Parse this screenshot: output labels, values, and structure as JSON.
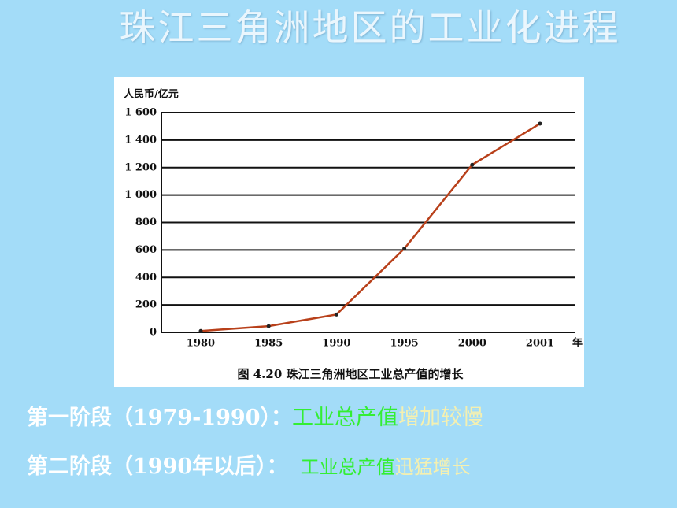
{
  "slide": {
    "title": "珠江三角洲地区的工业化进程",
    "lines": [
      [
        "第一阶段（1979-1990）：",
        "工业总产值",
        "增加较慢"
      ],
      [
        "第二阶段（1990年以后）：",
        "工业总产值",
        "迅猛增长"
      ]
    ]
  },
  "chart_data": {
    "type": "line",
    "y_label": "人民币/亿元",
    "x_label": "年",
    "caption": "图 4.20   珠江三角洲地区工业总产值的增长",
    "categories": [
      "1980",
      "1985",
      "1990",
      "1995",
      "2000",
      "2001"
    ],
    "series": [
      {
        "color": "#b8401a",
        "values": [
          10,
          45,
          130,
          610,
          1220,
          1520
        ]
      }
    ],
    "ylim": [
      0,
      1600
    ],
    "yticks": [
      0,
      200,
      400,
      600,
      800,
      {
        "value": 1000,
        "label": "1 000"
      },
      {
        "value": 1200,
        "label": "1 200"
      },
      {
        "value": 1400,
        "label": "1 400"
      },
      {
        "value": 1600,
        "label": "1 600"
      }
    ],
    "grid": true
  }
}
